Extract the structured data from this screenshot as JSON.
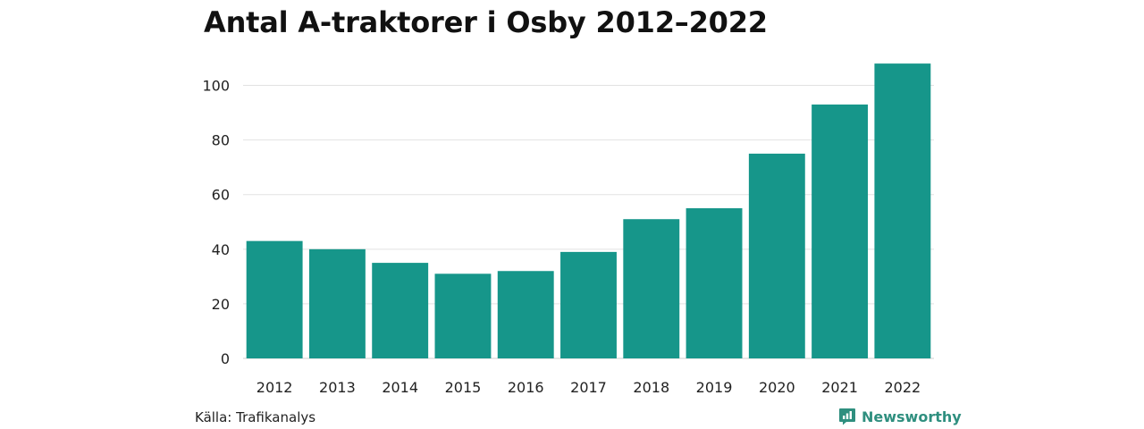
{
  "chart_data": {
    "type": "bar",
    "title": "Antal A-traktorer i Osby 2012–2022",
    "xlabel": "",
    "ylabel": "",
    "categories": [
      "2012",
      "2013",
      "2014",
      "2015",
      "2016",
      "2017",
      "2018",
      "2019",
      "2020",
      "2021",
      "2022"
    ],
    "values": [
      43,
      40,
      35,
      31,
      32,
      39,
      51,
      55,
      75,
      93,
      108
    ],
    "ylim": [
      0,
      110
    ],
    "yticks": [
      0,
      20,
      40,
      60,
      80,
      100
    ],
    "grid": true,
    "legend": "none",
    "bar_color": "#16968a"
  },
  "footer": {
    "source": "Källa: Trafikanalys",
    "brand": "Newsworthy",
    "brand_color": "#2f8f7f",
    "brand_icon": "newsworthy-logo-icon"
  }
}
